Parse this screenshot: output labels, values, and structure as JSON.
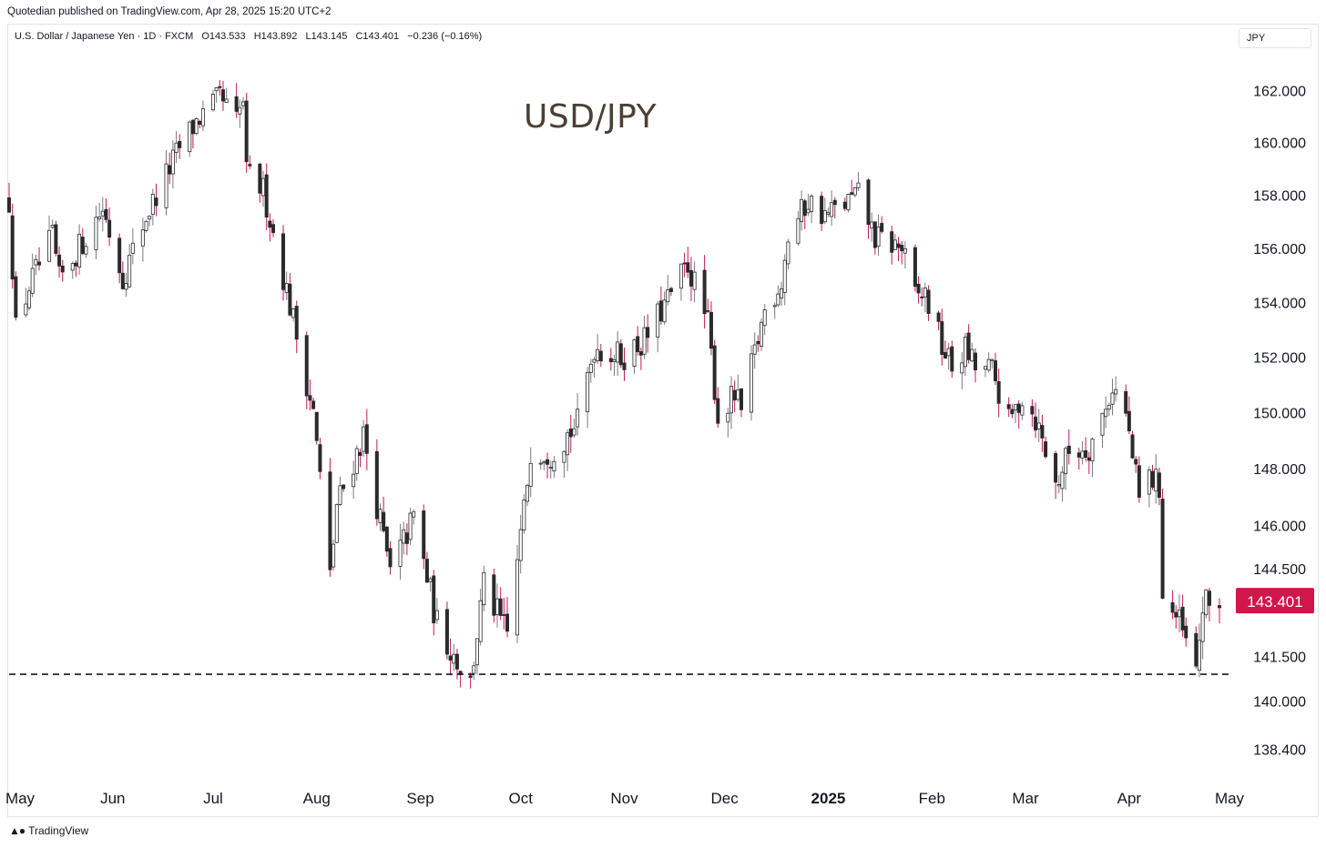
{
  "header": {
    "published": "Quotedian published on TradingView.com, Apr 28, 2025 15:20 UTC+2"
  },
  "legend": {
    "symbol": "U.S. Dollar / Japanese Yen · 1D · FXCM",
    "open": "O143.533",
    "high": "H143.892",
    "low": "L143.145",
    "close": "C143.401",
    "change": "−0.236 (−0.16%)"
  },
  "currency": "JPY",
  "footer": {
    "brand": "TradingView"
  },
  "chart_data": {
    "type": "candlestick",
    "title": "USD/JPY",
    "y_scale": "log",
    "ylim": [
      137.6,
      163.4
    ],
    "y_ticks": [
      {
        "value": 162.0,
        "label": "162.000"
      },
      {
        "value": 160.0,
        "label": "160.000"
      },
      {
        "value": 158.0,
        "label": "158.000"
      },
      {
        "value": 156.0,
        "label": "156.000"
      },
      {
        "value": 154.0,
        "label": "154.000"
      },
      {
        "value": 152.0,
        "label": "152.000"
      },
      {
        "value": 150.0,
        "label": "150.000"
      },
      {
        "value": 148.0,
        "label": "148.000"
      },
      {
        "value": 146.0,
        "label": "146.000"
      },
      {
        "value": 144.5,
        "label": "144.500"
      },
      {
        "value": 141.5,
        "label": "141.500"
      },
      {
        "value": 140.0,
        "label": "140.000"
      },
      {
        "value": 138.4,
        "label": "138.400"
      }
    ],
    "x_range": [
      "2024-05-01",
      "2025-05-01"
    ],
    "x_ticks": [
      {
        "date": "2024-05-01",
        "label": "May"
      },
      {
        "date": "2024-06-01",
        "label": "Jun"
      },
      {
        "date": "2024-07-01",
        "label": "Jul"
      },
      {
        "date": "2024-08-01",
        "label": "Aug"
      },
      {
        "date": "2024-09-01",
        "label": "Sep"
      },
      {
        "date": "2024-10-01",
        "label": "Oct"
      },
      {
        "date": "2024-11-01",
        "label": "Nov"
      },
      {
        "date": "2024-12-01",
        "label": "Dec"
      },
      {
        "date": "2025-01-01",
        "label": "2025",
        "bold": true
      },
      {
        "date": "2025-02-01",
        "label": "Feb"
      },
      {
        "date": "2025-03-01",
        "label": "Mar"
      },
      {
        "date": "2025-04-01",
        "label": "Apr"
      },
      {
        "date": "2025-05-01",
        "label": "May"
      }
    ],
    "support_level": 140.9,
    "last_price": {
      "value": 143.401,
      "label": "143.401"
    },
    "anchors": [
      {
        "date": "2024-05-01",
        "price": 157.8
      },
      {
        "date": "2024-05-03",
        "price": 153.0
      },
      {
        "date": "2024-05-07",
        "price": 154.6
      },
      {
        "date": "2024-05-14",
        "price": 156.4
      },
      {
        "date": "2024-05-16",
        "price": 154.8
      },
      {
        "date": "2024-05-29",
        "price": 157.5
      },
      {
        "date": "2024-06-04",
        "price": 154.9
      },
      {
        "date": "2024-06-11",
        "price": 157.2
      },
      {
        "date": "2024-06-21",
        "price": 159.8
      },
      {
        "date": "2024-06-26",
        "price": 160.8
      },
      {
        "date": "2024-07-03",
        "price": 161.7
      },
      {
        "date": "2024-07-08",
        "price": 160.8
      },
      {
        "date": "2024-07-10",
        "price": 161.6
      },
      {
        "date": "2024-07-11",
        "price": 158.8
      },
      {
        "date": "2024-07-16",
        "price": 158.2
      },
      {
        "date": "2024-07-24",
        "price": 153.9
      },
      {
        "date": "2024-07-31",
        "price": 150.0
      },
      {
        "date": "2024-08-05",
        "price": 144.2
      },
      {
        "date": "2024-08-07",
        "price": 146.7
      },
      {
        "date": "2024-08-15",
        "price": 149.2
      },
      {
        "date": "2024-08-23",
        "price": 144.3
      },
      {
        "date": "2024-08-30",
        "price": 146.3
      },
      {
        "date": "2024-09-06",
        "price": 142.6
      },
      {
        "date": "2024-09-16",
        "price": 140.6
      },
      {
        "date": "2024-09-18",
        "price": 142.3
      },
      {
        "date": "2024-09-20",
        "price": 143.9
      },
      {
        "date": "2024-09-27",
        "price": 142.2
      },
      {
        "date": "2024-10-02",
        "price": 146.5
      },
      {
        "date": "2024-10-04",
        "price": 148.7
      },
      {
        "date": "2024-10-10",
        "price": 148.6
      },
      {
        "date": "2024-10-18",
        "price": 149.6
      },
      {
        "date": "2024-10-23",
        "price": 152.4
      },
      {
        "date": "2024-10-31",
        "price": 152.0
      },
      {
        "date": "2024-11-07",
        "price": 152.6
      },
      {
        "date": "2024-11-15",
        "price": 154.3
      },
      {
        "date": "2024-11-20",
        "price": 155.4
      },
      {
        "date": "2024-11-26",
        "price": 153.2
      },
      {
        "date": "2024-11-29",
        "price": 149.8
      },
      {
        "date": "2024-12-04",
        "price": 150.6
      },
      {
        "date": "2024-12-06",
        "price": 150.0
      },
      {
        "date": "2024-12-13",
        "price": 153.7
      },
      {
        "date": "2024-12-18",
        "price": 154.8
      },
      {
        "date": "2024-12-20",
        "price": 156.4
      },
      {
        "date": "2024-12-26",
        "price": 157.8
      },
      {
        "date": "2024-12-31",
        "price": 157.2
      },
      {
        "date": "2025-01-10",
        "price": 158.0
      },
      {
        "date": "2025-01-15",
        "price": 156.4
      },
      {
        "date": "2025-01-23",
        "price": 156.0
      },
      {
        "date": "2025-01-27",
        "price": 154.2
      },
      {
        "date": "2025-01-30",
        "price": 154.3
      },
      {
        "date": "2025-02-04",
        "price": 152.4
      },
      {
        "date": "2025-02-07",
        "price": 151.6
      },
      {
        "date": "2025-02-11",
        "price": 152.3
      },
      {
        "date": "2025-02-14",
        "price": 151.6
      },
      {
        "date": "2025-02-19",
        "price": 151.5
      },
      {
        "date": "2025-02-24",
        "price": 149.6
      },
      {
        "date": "2025-02-28",
        "price": 150.6
      },
      {
        "date": "2025-03-04",
        "price": 149.8
      },
      {
        "date": "2025-03-10",
        "price": 147.4
      },
      {
        "date": "2025-03-14",
        "price": 148.6
      },
      {
        "date": "2025-03-20",
        "price": 148.8
      },
      {
        "date": "2025-03-25",
        "price": 150.1
      },
      {
        "date": "2025-03-27",
        "price": 151.0
      },
      {
        "date": "2025-03-31",
        "price": 149.9
      },
      {
        "date": "2025-04-04",
        "price": 146.9
      },
      {
        "date": "2025-04-07",
        "price": 147.7
      },
      {
        "date": "2025-04-10",
        "price": 147.4
      },
      {
        "date": "2025-04-11",
        "price": 143.6
      },
      {
        "date": "2025-04-16",
        "price": 142.6
      },
      {
        "date": "2025-04-21",
        "price": 140.9
      },
      {
        "date": "2025-04-23",
        "price": 143.2
      },
      {
        "date": "2025-04-28",
        "price": 143.4
      }
    ]
  }
}
